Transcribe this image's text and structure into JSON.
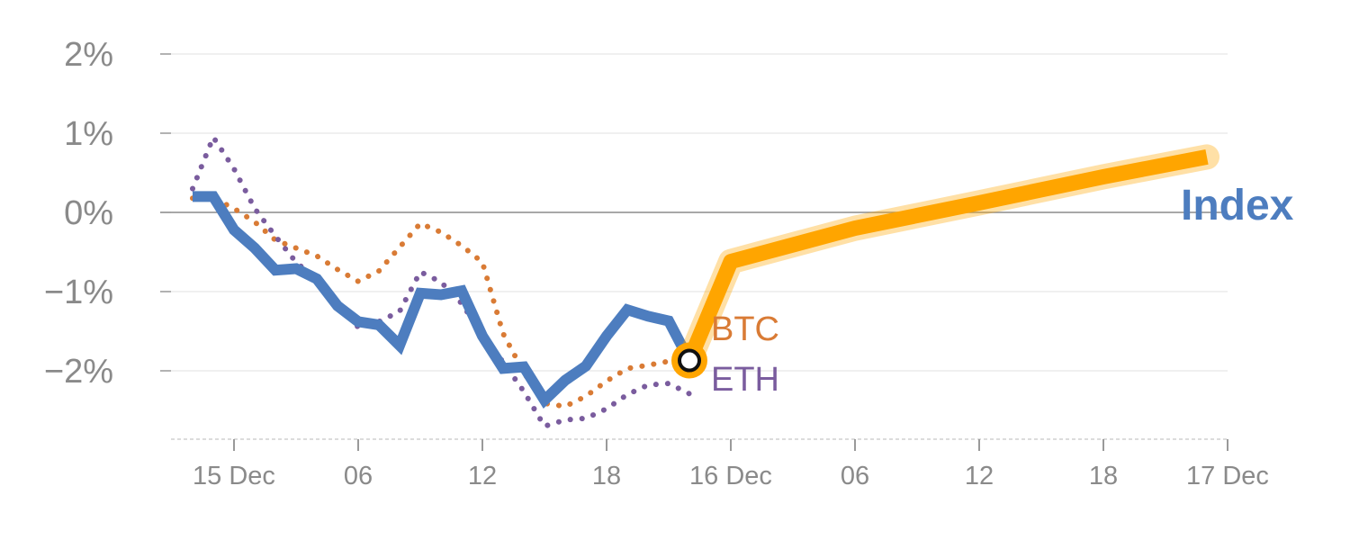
{
  "chart_data": {
    "type": "line",
    "x_type": "time",
    "y_unit": "%",
    "ylim": [
      -2.85,
      2.2
    ],
    "y_ticks": [
      2,
      1,
      0,
      -1,
      -2
    ],
    "y_tick_labels": [
      "2%",
      "1%",
      "0%",
      "−1%",
      "−2%"
    ],
    "x_ticks": [
      "2024-12-15 00:00",
      "2024-12-15 06:00",
      "2024-12-15 12:00",
      "2024-12-15 18:00",
      "2024-12-16 00:00",
      "2024-12-16 06:00",
      "2024-12-16 12:00",
      "2024-12-16 18:00",
      "2024-12-17 00:00"
    ],
    "x_tick_labels": [
      "15 Dec",
      "06",
      "12",
      "18",
      "16 Dec",
      "06",
      "12",
      "18",
      "17 Dec"
    ],
    "grid": true,
    "colors": {
      "index": "#4d7dbf",
      "btc": "#d97b35",
      "eth": "#7a5c9e",
      "projection": "#ffa500"
    },
    "series": [
      {
        "name": "Index",
        "style": "solid",
        "x": [
          "2024-12-14 22:00",
          "2024-12-14 23:00",
          "2024-12-15 00:00",
          "2024-12-15 01:00",
          "2024-12-15 02:00",
          "2024-12-15 03:00",
          "2024-12-15 04:00",
          "2024-12-15 05:00",
          "2024-12-15 06:00",
          "2024-12-15 07:00",
          "2024-12-15 08:00",
          "2024-12-15 09:00",
          "2024-12-15 10:00",
          "2024-12-15 11:00",
          "2024-12-15 12:00",
          "2024-12-15 13:00",
          "2024-12-15 14:00",
          "2024-12-15 15:00",
          "2024-12-15 16:00",
          "2024-12-15 17:00",
          "2024-12-15 18:00",
          "2024-12-15 19:00",
          "2024-12-15 20:00",
          "2024-12-15 21:00",
          "2024-12-15 22:00"
        ],
        "values": [
          0.2,
          0.2,
          -0.22,
          -0.45,
          -0.73,
          -0.71,
          -0.84,
          -1.18,
          -1.38,
          -1.42,
          -1.68,
          -1.02,
          -1.04,
          -0.99,
          -1.56,
          -1.97,
          -1.95,
          -2.37,
          -2.12,
          -1.94,
          -1.56,
          -1.23,
          -1.31,
          -1.37,
          -1.87
        ]
      },
      {
        "name": "BTC",
        "style": "dotted",
        "x": [
          "2024-12-14 22:00",
          "2024-12-14 23:00",
          "2024-12-15 00:00",
          "2024-12-15 01:00",
          "2024-12-15 02:00",
          "2024-12-15 03:00",
          "2024-12-15 04:00",
          "2024-12-15 05:00",
          "2024-12-15 06:00",
          "2024-12-15 07:00",
          "2024-12-15 08:00",
          "2024-12-15 09:00",
          "2024-12-15 10:00",
          "2024-12-15 11:00",
          "2024-12-15 12:00",
          "2024-12-15 13:00",
          "2024-12-15 14:00",
          "2024-12-15 15:00",
          "2024-12-15 16:00",
          "2024-12-15 17:00",
          "2024-12-15 18:00",
          "2024-12-15 19:00",
          "2024-12-15 20:00",
          "2024-12-15 21:00",
          "2024-12-15 22:00"
        ],
        "values": [
          0.18,
          0.18,
          0.05,
          -0.12,
          -0.35,
          -0.45,
          -0.55,
          -0.72,
          -0.87,
          -0.74,
          -0.44,
          -0.14,
          -0.25,
          -0.42,
          -0.63,
          -1.53,
          -2.02,
          -2.41,
          -2.45,
          -2.32,
          -2.13,
          -1.97,
          -1.93,
          -1.88,
          -1.85
        ]
      },
      {
        "name": "ETH",
        "style": "dotted",
        "x": [
          "2024-12-14 22:00",
          "2024-12-14 23:00",
          "2024-12-15 00:00",
          "2024-12-15 01:00",
          "2024-12-15 02:00",
          "2024-12-15 03:00",
          "2024-12-15 04:00",
          "2024-12-15 05:00",
          "2024-12-15 06:00",
          "2024-12-15 07:00",
          "2024-12-15 08:00",
          "2024-12-15 09:00",
          "2024-12-15 10:00",
          "2024-12-15 11:00",
          "2024-12-15 12:00",
          "2024-12-15 13:00",
          "2024-12-15 14:00",
          "2024-12-15 15:00",
          "2024-12-15 16:00",
          "2024-12-15 17:00",
          "2024-12-15 18:00",
          "2024-12-15 19:00",
          "2024-12-15 20:00",
          "2024-12-15 21:00",
          "2024-12-15 22:00"
        ],
        "values": [
          0.3,
          0.95,
          0.55,
          0.05,
          -0.3,
          -0.63,
          -0.85,
          -1.15,
          -1.45,
          -1.38,
          -1.25,
          -0.75,
          -0.88,
          -1.15,
          -1.55,
          -1.89,
          -2.26,
          -2.7,
          -2.62,
          -2.6,
          -2.48,
          -2.3,
          -2.18,
          -2.16,
          -2.29
        ]
      }
    ],
    "projection": {
      "x": [
        "2024-12-15 22:00",
        "2024-12-16 00:00",
        "2024-12-16 01:00",
        "2024-12-16 06:00",
        "2024-12-16 12:00",
        "2024-12-16 18:00",
        "2024-12-16 23:00"
      ],
      "values": [
        -1.87,
        -0.62,
        -0.55,
        -0.2,
        0.12,
        0.45,
        0.7
      ]
    },
    "marker": {
      "x": "2024-12-15 22:00",
      "y": -1.87
    },
    "labels": {
      "btc": "BTC",
      "eth": "ETH",
      "index": "Index"
    }
  }
}
